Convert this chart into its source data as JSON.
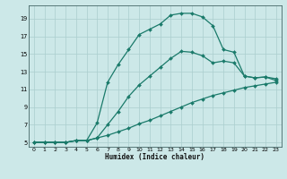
{
  "xlabel": "Humidex (Indice chaleur)",
  "background_color": "#cce8e8",
  "grid_color": "#aacece",
  "line_color": "#1a7a6a",
  "xlim": [
    -0.5,
    23.5
  ],
  "ylim": [
    4.5,
    20.5
  ],
  "xticks": [
    0,
    1,
    2,
    3,
    4,
    5,
    6,
    7,
    8,
    9,
    10,
    11,
    12,
    13,
    14,
    15,
    16,
    17,
    18,
    19,
    20,
    21,
    22,
    23
  ],
  "yticks": [
    5,
    7,
    9,
    11,
    13,
    15,
    17,
    19
  ],
  "line1_x": [
    0,
    1,
    2,
    3,
    4,
    5,
    6,
    7,
    8,
    9,
    10,
    11,
    12,
    13,
    14,
    15,
    16,
    17,
    18,
    19,
    20,
    21,
    22,
    23
  ],
  "line1_y": [
    5.0,
    5.0,
    5.0,
    5.0,
    5.2,
    5.2,
    5.5,
    5.8,
    6.2,
    6.6,
    7.1,
    7.5,
    8.0,
    8.5,
    9.0,
    9.5,
    9.9,
    10.3,
    10.6,
    10.9,
    11.2,
    11.4,
    11.6,
    11.8
  ],
  "line2_x": [
    0,
    1,
    2,
    3,
    4,
    5,
    6,
    7,
    8,
    9,
    10,
    11,
    12,
    13,
    14,
    15,
    16,
    17,
    18,
    19,
    20,
    21,
    22,
    23
  ],
  "line2_y": [
    5.0,
    5.0,
    5.0,
    5.0,
    5.2,
    5.2,
    5.5,
    7.0,
    8.5,
    10.2,
    11.5,
    12.5,
    13.5,
    14.5,
    15.3,
    15.2,
    14.8,
    14.0,
    14.2,
    14.0,
    12.5,
    12.3,
    12.4,
    12.2
  ],
  "line3_x": [
    0,
    1,
    2,
    3,
    4,
    5,
    6,
    7,
    8,
    9,
    10,
    11,
    12,
    13,
    14,
    15,
    16,
    17,
    18,
    19,
    20,
    21,
    22,
    23
  ],
  "line3_y": [
    5.0,
    5.0,
    5.0,
    5.0,
    5.2,
    5.2,
    7.2,
    11.8,
    13.8,
    15.5,
    17.2,
    17.8,
    18.4,
    19.4,
    19.6,
    19.6,
    19.2,
    18.2,
    15.5,
    15.2,
    12.5,
    12.3,
    12.4,
    12.0
  ]
}
